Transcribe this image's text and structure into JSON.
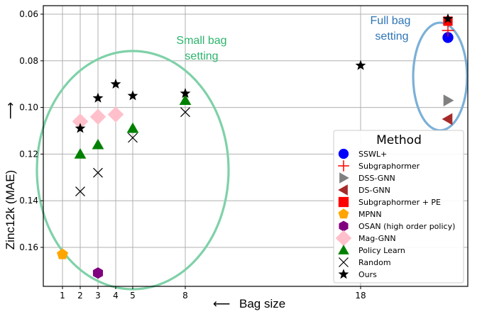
{
  "chart_data": {
    "type": "scatter",
    "title": "",
    "xlabel": "Bag size",
    "xlabel_arrow": "⟵",
    "ylabel": "Zinc12k (MAE)",
    "ylabel_arrow": "⟶",
    "y_inverted": true,
    "ylim": [
      0.0565,
      0.1765
    ],
    "y_ticks": [
      0.06,
      0.08,
      0.1,
      0.12,
      0.14,
      0.16
    ],
    "y_tick_labels": [
      "0.06",
      "0.08",
      "0.10",
      "0.12",
      "0.14",
      "0.16"
    ],
    "y_minor_grid": [
      0.06,
      0.08,
      0.1,
      0.12,
      0.14,
      0.16
    ],
    "x_ticks": [
      1,
      2,
      3,
      4,
      5,
      8,
      18
    ],
    "x_tick_labels": [
      "1",
      "2",
      "3",
      "4",
      "5",
      "8",
      "18"
    ],
    "x_full_bag_position": "full",
    "grid": true,
    "legend": {
      "title": "Method",
      "placement": "bottom-right",
      "entries": [
        {
          "name": "SSWL+",
          "marker": "circle",
          "color": "#0000ff"
        },
        {
          "name": "Subgraphormer",
          "marker": "plus",
          "color": "#ff0000"
        },
        {
          "name": "DSS-GNN",
          "marker": "triangle-right",
          "color": "#808080"
        },
        {
          "name": "DS-GNN",
          "marker": "triangle-left",
          "color": "#a52a2a"
        },
        {
          "name": "Subgraphormer + PE",
          "marker": "square",
          "color": "#ff0000"
        },
        {
          "name": "MPNN",
          "marker": "pentagon",
          "color": "#ffa500"
        },
        {
          "name": "OSAN (high order policy)",
          "marker": "hexagon",
          "color": "#800080"
        },
        {
          "name": "Mag-GNN",
          "marker": "diamond",
          "color": "#ffc0cb"
        },
        {
          "name": "Policy Learn",
          "marker": "triangle-up",
          "color": "#008000"
        },
        {
          "name": "Random",
          "marker": "x",
          "color": "#000000"
        },
        {
          "name": "Ours",
          "marker": "star",
          "color": "#000000"
        }
      ]
    },
    "series": [
      {
        "name": "Subgraphormer + PE",
        "points": [
          {
            "x": "full",
            "y": 0.063
          }
        ]
      },
      {
        "name": "SSWL+",
        "points": [
          {
            "x": "full",
            "y": 0.07
          }
        ]
      },
      {
        "name": "Subgraphormer",
        "points": [
          {
            "x": "full",
            "y": 0.067
          }
        ]
      },
      {
        "name": "DSS-GNN",
        "points": [
          {
            "x": "full",
            "y": 0.097
          }
        ]
      },
      {
        "name": "DS-GNN",
        "points": [
          {
            "x": "full",
            "y": 0.105
          }
        ]
      },
      {
        "name": "MPNN",
        "points": [
          {
            "x": 1,
            "y": 0.163
          }
        ]
      },
      {
        "name": "OSAN (high order policy)",
        "points": [
          {
            "x": 3,
            "y": 0.171
          }
        ]
      },
      {
        "name": "Mag-GNN",
        "points": [
          {
            "x": 2,
            "y": 0.106
          },
          {
            "x": 3,
            "y": 0.104
          },
          {
            "x": 4,
            "y": 0.103
          }
        ]
      },
      {
        "name": "Policy Learn",
        "points": [
          {
            "x": 2,
            "y": 0.12
          },
          {
            "x": 3,
            "y": 0.116
          },
          {
            "x": 5,
            "y": 0.109
          },
          {
            "x": 8,
            "y": 0.097
          }
        ]
      },
      {
        "name": "Random",
        "points": [
          {
            "x": 2,
            "y": 0.136
          },
          {
            "x": 3,
            "y": 0.128
          },
          {
            "x": 5,
            "y": 0.113
          },
          {
            "x": 8,
            "y": 0.102
          }
        ]
      },
      {
        "name": "Ours",
        "points": [
          {
            "x": 2,
            "y": 0.109
          },
          {
            "x": 3,
            "y": 0.096
          },
          {
            "x": 4,
            "y": 0.09
          },
          {
            "x": 5,
            "y": 0.095
          },
          {
            "x": 8,
            "y": 0.094
          },
          {
            "x": 18,
            "y": 0.082
          },
          {
            "x": "full",
            "y": 0.062
          }
        ]
      }
    ],
    "annotations": [
      {
        "text_lines": [
          "Small bag",
          "setting"
        ],
        "color": "#2db46e",
        "ellipse_color": "#7fd1a8"
      },
      {
        "text_lines": [
          "Full bag",
          "setting"
        ],
        "color": "#2e75b6",
        "ellipse_color": "#7bb0d8"
      }
    ]
  }
}
